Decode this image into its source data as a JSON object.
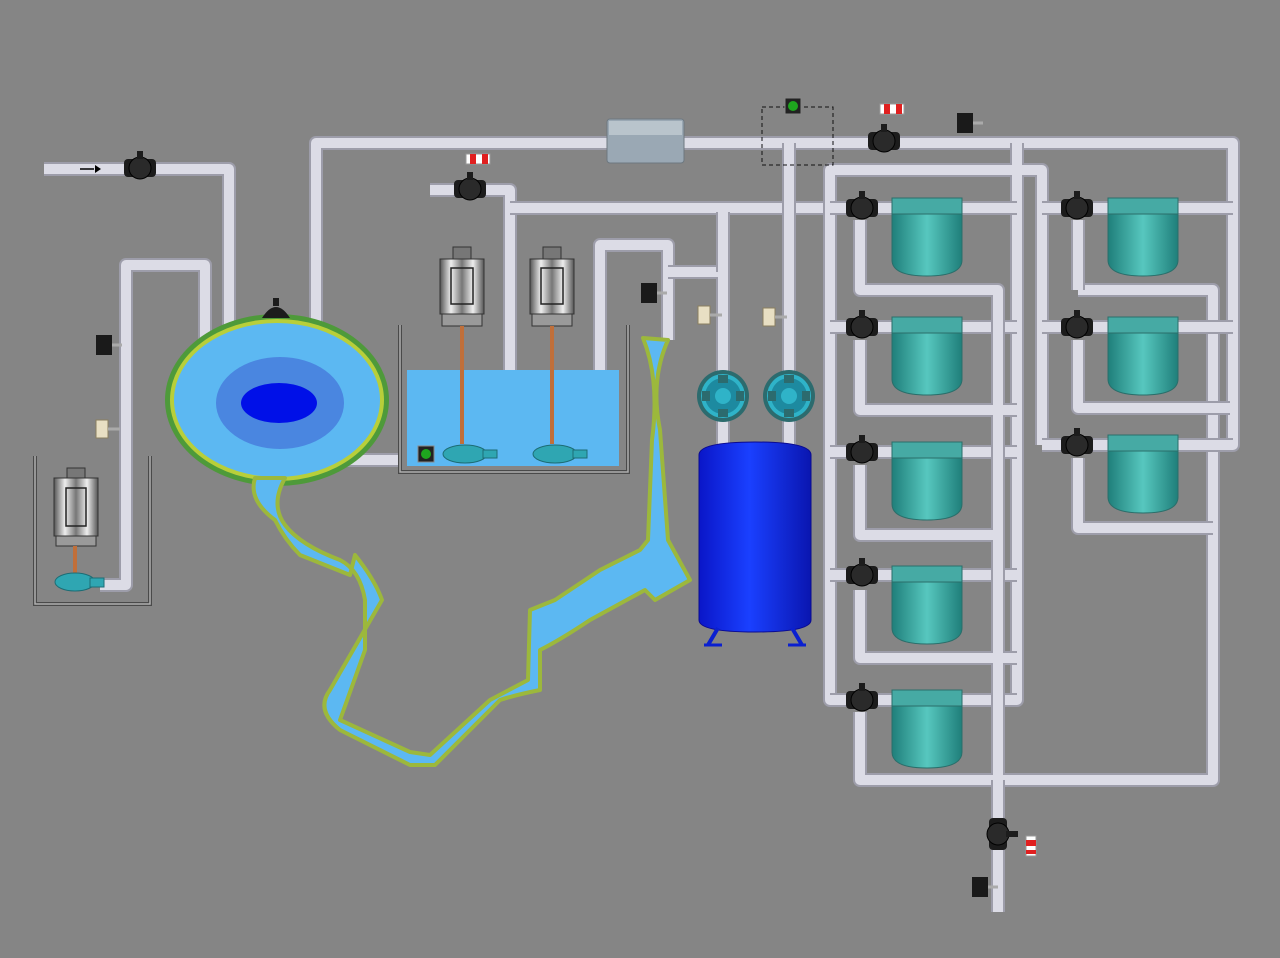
{
  "screen": {
    "background": "#858585"
  },
  "colors": {
    "pipe": "#d9d9e3",
    "pipe_edge": "#9d9daa",
    "water": "#5bb6f2",
    "water_deep": "#0010e8",
    "rim": "#6aa64c",
    "rim_light": "#b6cc3c",
    "filter_body": "#2f9c96",
    "filter_top": "#4fbcb4",
    "valve": "#1c1c1c",
    "tank": "#0a2af0",
    "pump": "#2fa6b2",
    "motor": "#6f6f6f",
    "indicator_on": "#1ea51e",
    "alarm_red": "#e02020"
  },
  "diagram": {
    "units": {
      "inlet_flow_direction": "right",
      "motors": [
        "motor-lift-pump",
        "motor-mixer-1",
        "motor-mixer-2"
      ],
      "filters_left_column": 5,
      "filters_right_column": 3,
      "pressure_tank": 1,
      "booster_pumps": 2
    }
  }
}
